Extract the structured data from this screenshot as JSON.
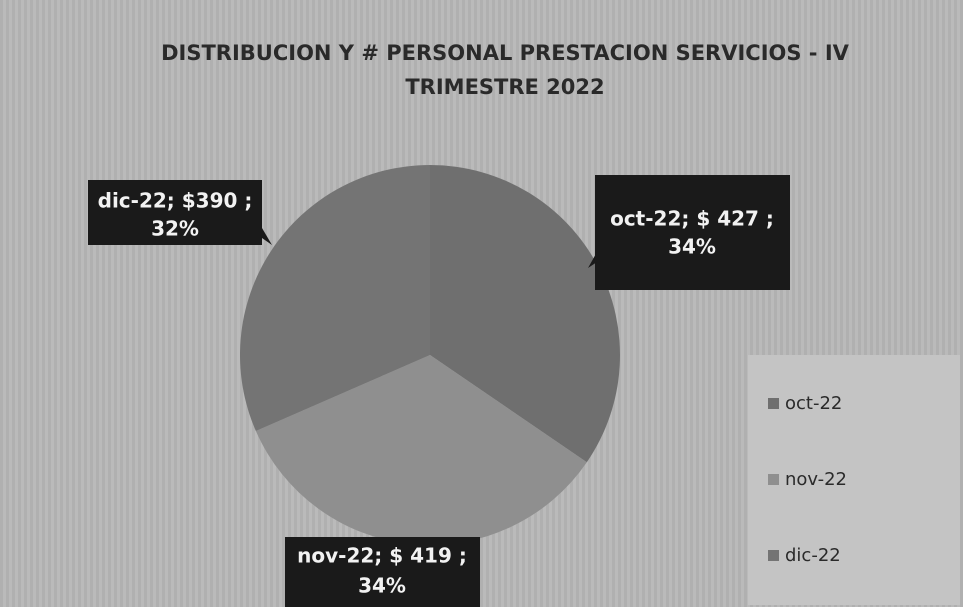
{
  "chart_data": {
    "type": "pie",
    "title": [
      "DISTRIBUCION Y # PERSONAL PRESTACION SERVICIOS - IV",
      "TRIMESTRE 2022"
    ],
    "categories": [
      "oct-22",
      "nov-22",
      "dic-22"
    ],
    "values": [
      427,
      419,
      390
    ],
    "value_labels": [
      "oct-22; $ 427 ;",
      "nov-22; $ 419 ;",
      "dic-22; $390 ;"
    ],
    "percentages": [
      34,
      34,
      32
    ],
    "percentage_labels": [
      "34%",
      "34%",
      "32%"
    ],
    "colors": [
      "#6f6f6f",
      "#8f8f8f",
      "#747474"
    ],
    "legend": "right"
  }
}
